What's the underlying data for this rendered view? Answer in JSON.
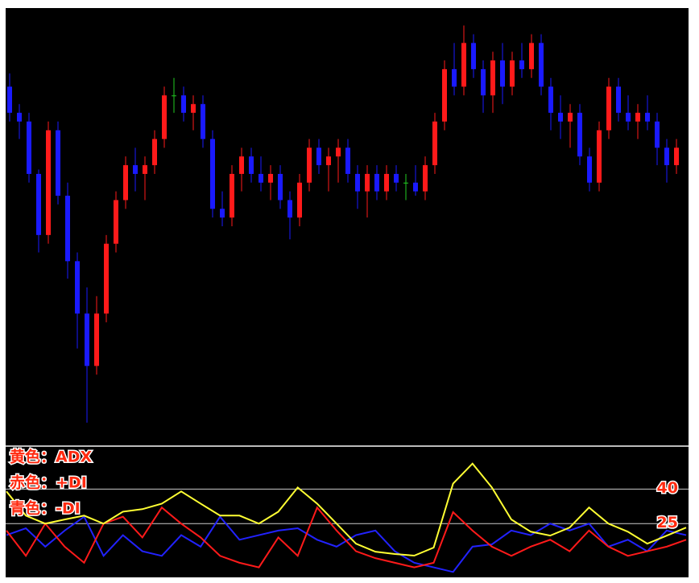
{
  "chart_data": [
    {
      "type": "candlestick",
      "up_color": "#ff1a1a",
      "down_color": "#1a1aff",
      "doji_color": "#22cc22",
      "ylim": [
        0,
        100
      ],
      "open": [
        82,
        76,
        74,
        62,
        48,
        72,
        57,
        42,
        30,
        18,
        30,
        46,
        56,
        64,
        62,
        64,
        70,
        80,
        80,
        76,
        78,
        70,
        54,
        52,
        62,
        66,
        62,
        60,
        62,
        56,
        52,
        60,
        68,
        64,
        66,
        68,
        62,
        58,
        62,
        58,
        62,
        60,
        60,
        58,
        64,
        74,
        86,
        82,
        92,
        86,
        80,
        88,
        82,
        88,
        86,
        92,
        82,
        76,
        74,
        76,
        66,
        60,
        72,
        82,
        76,
        74,
        76,
        74,
        68,
        64
      ],
      "high": [
        85,
        78,
        76,
        63,
        74,
        74,
        60,
        44,
        36,
        34,
        48,
        58,
        66,
        68,
        66,
        72,
        82,
        84,
        82,
        80,
        80,
        72,
        58,
        64,
        68,
        68,
        66,
        64,
        64,
        58,
        62,
        70,
        70,
        68,
        70,
        70,
        64,
        64,
        64,
        64,
        64,
        62,
        64,
        66,
        76,
        88,
        92,
        96,
        94,
        88,
        90,
        92,
        90,
        92,
        94,
        94,
        84,
        80,
        78,
        78,
        68,
        74,
        84,
        84,
        80,
        78,
        80,
        76,
        70,
        70
      ],
      "low": [
        74,
        70,
        60,
        44,
        46,
        55,
        38,
        22,
        5,
        16,
        28,
        44,
        54,
        58,
        56,
        62,
        68,
        76,
        74,
        72,
        68,
        52,
        50,
        50,
        58,
        60,
        58,
        56,
        54,
        47,
        50,
        58,
        62,
        58,
        60,
        60,
        54,
        52,
        56,
        56,
        58,
        56,
        57,
        56,
        62,
        72,
        80,
        80,
        84,
        76,
        76,
        78,
        80,
        84,
        84,
        80,
        72,
        70,
        68,
        64,
        58,
        58,
        70,
        74,
        72,
        70,
        72,
        64,
        60,
        62
      ],
      "close": [
        76,
        74,
        62,
        48,
        72,
        57,
        42,
        30,
        18,
        30,
        46,
        56,
        64,
        62,
        64,
        70,
        80,
        80,
        76,
        78,
        70,
        54,
        52,
        62,
        66,
        62,
        60,
        62,
        56,
        52,
        60,
        68,
        64,
        66,
        68,
        62,
        58,
        62,
        58,
        62,
        60,
        60,
        58,
        64,
        74,
        86,
        82,
        92,
        86,
        80,
        88,
        82,
        88,
        86,
        92,
        82,
        76,
        74,
        76,
        66,
        60,
        72,
        82,
        76,
        74,
        76,
        74,
        68,
        64,
        68
      ]
    },
    {
      "type": "line",
      "ylim": [
        2,
        58
      ],
      "levels": [
        40,
        25
      ],
      "series": [
        {
          "name": "黄色：ADX",
          "color": "#ffff33",
          "values": [
            39,
            28.5,
            25,
            26.8,
            28.5,
            25,
            30.2,
            31.3,
            33.7,
            39,
            33.7,
            28.5,
            28.5,
            25,
            30.2,
            40.7,
            33.7,
            25,
            16.3,
            12.8,
            11.8,
            11.1,
            14.6,
            42.4,
            51.1,
            40.7,
            26.8,
            21.5,
            19.8,
            23.3,
            32,
            25,
            21.5,
            16.3,
            19.8,
            23.3
          ]
        },
        {
          "name": "赤色：+DI",
          "color": "#ff1a1a",
          "values": [
            22,
            11,
            25,
            15,
            8,
            25,
            28,
            19,
            32,
            25,
            19,
            11,
            8,
            6,
            19,
            11,
            32,
            22,
            13,
            10,
            8,
            6,
            8,
            30,
            22,
            15,
            11,
            15,
            18,
            13,
            22,
            15,
            11,
            13,
            15,
            18
          ]
        },
        {
          "name": "青色：-DI",
          "color": "#2222ff",
          "values": [
            20,
            23,
            15,
            22,
            28,
            11,
            20,
            13,
            11,
            20,
            15,
            28,
            18,
            20,
            22,
            23,
            18,
            15,
            20,
            22,
            13,
            8,
            6,
            4,
            15,
            16,
            22,
            20,
            25,
            22,
            25,
            15,
            18,
            13,
            22,
            20
          ]
        }
      ]
    }
  ]
}
